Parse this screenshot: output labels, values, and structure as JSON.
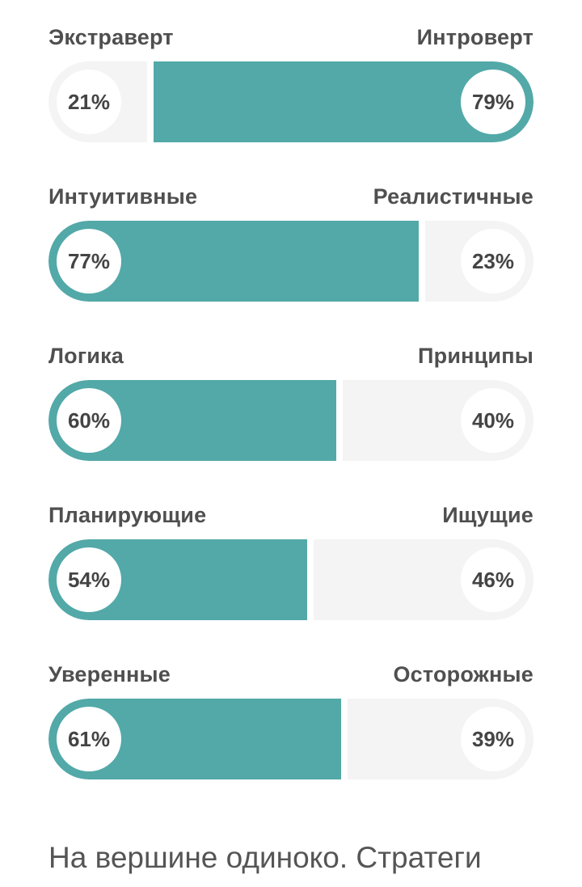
{
  "traits": [
    {
      "left_label": "Экстраверт",
      "right_label": "Интроверт",
      "left_percent": "21%",
      "right_percent": "79%",
      "left_value": 21,
      "right_value": 79,
      "dominant": "right"
    },
    {
      "left_label": "Интуитивные",
      "right_label": "Реалистичные",
      "left_percent": "77%",
      "right_percent": "23%",
      "left_value": 77,
      "right_value": 23,
      "dominant": "left"
    },
    {
      "left_label": "Логика",
      "right_label": "Принципы",
      "left_percent": "60%",
      "right_percent": "40%",
      "left_value": 60,
      "right_value": 40,
      "dominant": "left"
    },
    {
      "left_label": "Планирующие",
      "right_label": "Ищущие",
      "left_percent": "54%",
      "right_percent": "46%",
      "left_value": 54,
      "right_value": 46,
      "dominant": "left"
    },
    {
      "left_label": "Уверенные",
      "right_label": "Осторожные",
      "left_percent": "61%",
      "right_percent": "39%",
      "left_value": 61,
      "right_value": 39,
      "dominant": "left"
    }
  ],
  "footer": {
    "text": "На вершине одиноко. Стратеги"
  },
  "colors": {
    "accent": "#52a9a8",
    "track": "#f4f4f4",
    "text": "#4f4f4f"
  }
}
